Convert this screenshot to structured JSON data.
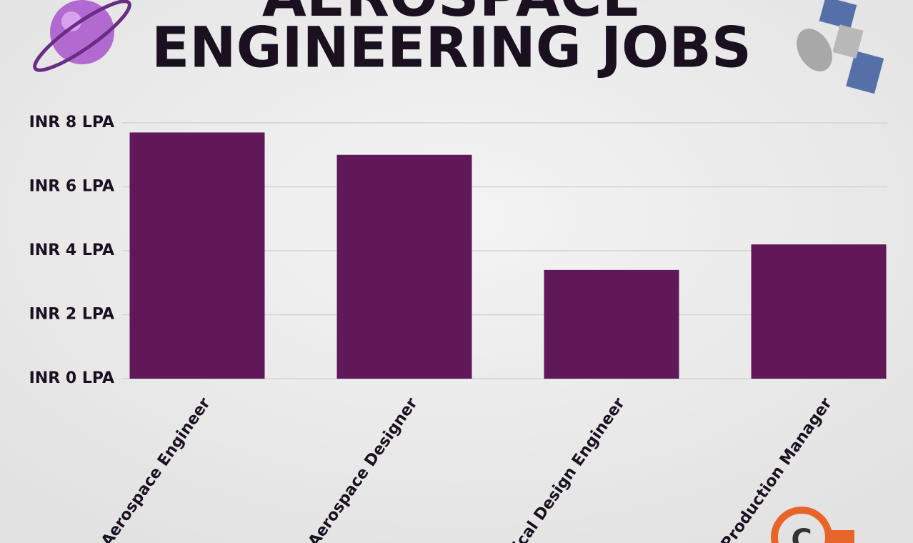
{
  "chart_data": {
    "type": "bar",
    "title": [
      "AEROSPACE",
      "ENGINEERING JOBS"
    ],
    "categories": [
      "Aerospace Engineer",
      "Aerospace Designer",
      "nical Design Engineer",
      "& Production Manager"
    ],
    "values": [
      7.7,
      7.0,
      3.4,
      4.2
    ],
    "color": "#611858",
    "ylim": [
      0,
      8
    ],
    "yticks": [
      {
        "value": 0,
        "label": "INR 0 LPA"
      },
      {
        "value": 2,
        "label": "INR 2 LPA"
      },
      {
        "value": 4,
        "label": "INR 4 LPA"
      },
      {
        "value": 6,
        "label": "INR 6 LPA"
      },
      {
        "value": 8,
        "label": "INR 8 LPA"
      }
    ],
    "grid": true
  }
}
